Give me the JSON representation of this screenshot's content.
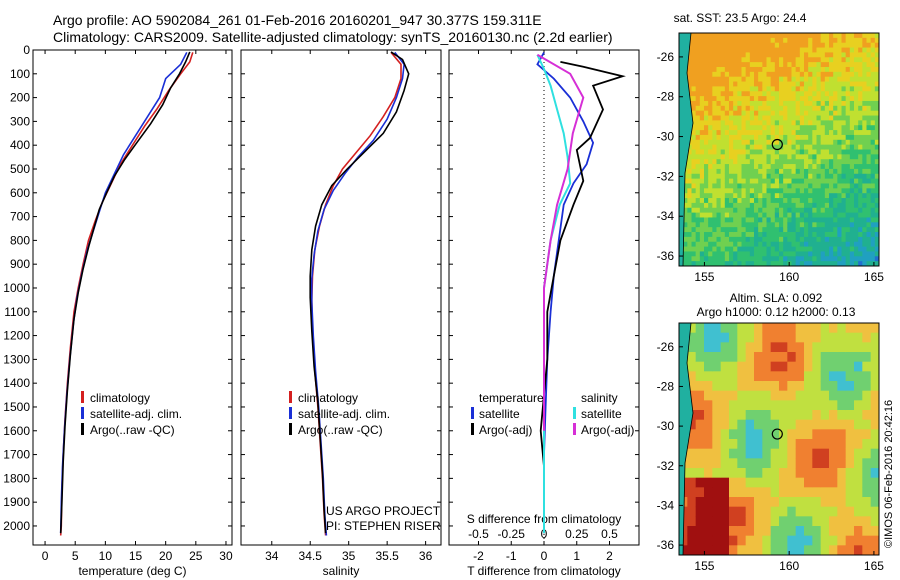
{
  "header": {
    "line1": "Argo profile: AO 5902084_261 01-Feb-2016 20160201_947 30.377S 159.311E",
    "line2": "Climatology: CARS2009. Satellite-adjusted climatology: synTS_20160130.nc (2.2d earlier)"
  },
  "colors": {
    "climatology": "#d42020",
    "satellite": "#1a2fd6",
    "argo": "#000000",
    "sal_sat": "#2fe0e0",
    "sal_argo": "#d62fd6"
  },
  "chart_data": [
    {
      "type": "line",
      "xlabel": "temperature (deg C)",
      "ylabel": "",
      "xlim": [
        -2,
        31
      ],
      "ylim": [
        2080,
        0
      ],
      "xticks": [
        0,
        5,
        10,
        15,
        20,
        25,
        30
      ],
      "yticks": [
        0,
        100,
        200,
        300,
        400,
        500,
        600,
        700,
        800,
        900,
        1000,
        1100,
        1200,
        1300,
        1400,
        1500,
        1600,
        1700,
        1800,
        1900,
        2000
      ],
      "legend": [
        "climatology",
        "satellite-adj. clim.",
        "Argo(..raw -QC)"
      ],
      "series": [
        {
          "name": "climatology",
          "color": "#d42020",
          "x": [
            24.5,
            24,
            22.5,
            20.5,
            18.5,
            16.5,
            14.5,
            12.5,
            11,
            9.5,
            8.3,
            7.2,
            6.3,
            5.5,
            4.8,
            4.2,
            3.7,
            3.3,
            3,
            2.8,
            2.7,
            2.6
          ],
          "y": [
            10,
            50,
            100,
            170,
            250,
            320,
            400,
            480,
            560,
            640,
            720,
            800,
            900,
            1000,
            1100,
            1250,
            1400,
            1550,
            1700,
            1850,
            2000,
            2040
          ]
        },
        {
          "name": "satellite-adj. clim.",
          "color": "#1a2fd6",
          "x": [
            23.5,
            22.5,
            20,
            19,
            17,
            15,
            13,
            11.5,
            10,
            9,
            8,
            7,
            6.1,
            5.3,
            4.7,
            4.1,
            3.6,
            3.2,
            2.9,
            2.7,
            2.6
          ],
          "y": [
            10,
            60,
            120,
            200,
            280,
            360,
            440,
            520,
            600,
            680,
            760,
            840,
            940,
            1040,
            1150,
            1300,
            1450,
            1600,
            1750,
            1900,
            2030
          ]
        },
        {
          "name": "Argo(..raw -QC)",
          "color": "#000000",
          "x": [
            24,
            23.3,
            22.3,
            20.8,
            19.5,
            17.5,
            15.2,
            13.2,
            11.5,
            10.2,
            9,
            8.2,
            7.3,
            6.3,
            5.5,
            4.8,
            4.2,
            3.7,
            3.3,
            3,
            2.8,
            2.6
          ],
          "y": [
            8,
            50,
            100,
            160,
            230,
            310,
            390,
            460,
            530,
            600,
            670,
            740,
            820,
            920,
            1020,
            1130,
            1280,
            1430,
            1580,
            1730,
            1900,
            2030
          ]
        }
      ]
    },
    {
      "type": "line",
      "xlabel": "salinity",
      "xlim": [
        33.6,
        36.2
      ],
      "ylim": [
        2080,
        0
      ],
      "xticks": [
        34,
        34.5,
        35,
        35.5,
        36
      ],
      "legend": [
        "climatology",
        "satellite-adj. clim.",
        "Argo(..raw -QC)"
      ],
      "series": [
        {
          "name": "climatology",
          "color": "#d42020",
          "x": [
            35.55,
            35.68,
            35.68,
            35.6,
            35.45,
            35.28,
            35.1,
            34.92,
            34.8,
            34.7,
            34.62,
            34.56,
            34.53,
            34.52,
            34.53,
            34.56,
            34.6,
            34.63,
            34.66,
            34.68,
            34.7
          ],
          "y": [
            10,
            60,
            120,
            200,
            280,
            360,
            430,
            500,
            570,
            650,
            740,
            840,
            950,
            1050,
            1200,
            1350,
            1500,
            1650,
            1800,
            1950,
            2040
          ]
        },
        {
          "name": "satellite-adj. clim.",
          "color": "#1a2fd6",
          "x": [
            35.6,
            35.72,
            35.7,
            35.62,
            35.5,
            35.32,
            35.12,
            34.95,
            34.8,
            34.68,
            34.6,
            34.55,
            34.52,
            34.52,
            34.54,
            34.57,
            34.61,
            34.64,
            34.67,
            34.69,
            34.71
          ],
          "y": [
            10,
            60,
            120,
            200,
            290,
            380,
            450,
            520,
            590,
            670,
            760,
            860,
            960,
            1060,
            1200,
            1350,
            1500,
            1650,
            1800,
            1950,
            2040
          ]
        },
        {
          "name": "Argo(..raw -QC)",
          "color": "#000000",
          "x": [
            35.55,
            35.7,
            35.78,
            35.72,
            35.62,
            35.45,
            35.2,
            34.98,
            34.78,
            34.65,
            34.57,
            34.52,
            34.5,
            34.5,
            34.52,
            34.55,
            34.6,
            34.63,
            34.66,
            34.68,
            34.7
          ],
          "y": [
            8,
            40,
            100,
            170,
            260,
            350,
            430,
            500,
            570,
            650,
            740,
            840,
            950,
            1040,
            1180,
            1330,
            1480,
            1630,
            1780,
            1930,
            2030
          ]
        }
      ]
    },
    {
      "type": "line",
      "xlabel": "T difference from climatology",
      "xlim": [
        -2.9,
        2.9
      ],
      "ylim": [
        2080,
        0
      ],
      "xticks": [
        -2,
        -1,
        0,
        1,
        2
      ],
      "second_axis": {
        "label": "S difference from climatology",
        "ticks": [
          -0.5,
          -0.25,
          0,
          0.25,
          0.5
        ],
        "tick_labels": [
          "-0.5",
          "-0.25",
          "0",
          "0.25",
          "0.5"
        ]
      },
      "legend_groups": [
        {
          "title": "temperature",
          "entries": [
            {
              "label": "satellite",
              "color": "#1a2fd6"
            },
            {
              "label": "Argo(-adj)",
              "color": "#000000"
            }
          ]
        },
        {
          "title": "salinity",
          "entries": [
            {
              "label": "satellite",
              "color": "#2fe0e0"
            },
            {
              "label": "Argo(-adj)",
              "color": "#d62fd6"
            }
          ]
        }
      ],
      "series": [
        {
          "name": "satellite",
          "group": "temperature",
          "color": "#1a2fd6",
          "x": [
            0,
            -0.2,
            0.3,
            0.8,
            1.2,
            1.5,
            1.3,
            0.9,
            0.6,
            0.5,
            0.4,
            0.3,
            0.2,
            0.1,
            0.05,
            0,
            0,
            0,
            0
          ],
          "y": [
            10,
            60,
            120,
            200,
            300,
            390,
            480,
            560,
            650,
            750,
            850,
            950,
            1100,
            1300,
            1500,
            1700,
            1850,
            1950,
            2030
          ]
        },
        {
          "name": "Argo(-adj)",
          "group": "temperature",
          "color": "#000000",
          "x": [
            0.5,
            1.2,
            2.4,
            1.5,
            1.8,
            1.4,
            1.0,
            1.2,
            0.9,
            0.5,
            0.3,
            0.1,
            0.1,
            0,
            -0.1,
            0,
            0,
            0
          ],
          "y": [
            50,
            70,
            110,
            150,
            250,
            370,
            420,
            550,
            650,
            800,
            950,
            1100,
            1300,
            1450,
            1600,
            1750,
            1900,
            2030
          ]
        },
        {
          "name": "satellite",
          "group": "salinity",
          "color": "#2fe0e0",
          "x": [
            -0.05,
            0,
            0.05,
            0.1,
            0.15,
            0.18,
            0.2,
            0.12,
            0.05,
            0,
            0,
            0,
            0,
            0
          ],
          "y": [
            20,
            80,
            150,
            250,
            350,
            450,
            560,
            650,
            800,
            1000,
            1300,
            1600,
            1850,
            2030
          ]
        },
        {
          "name": "Argo(-adj)",
          "group": "salinity",
          "color": "#d62fd6",
          "x": [
            -0.05,
            0.2,
            0.3,
            0.22,
            0.18,
            0.1,
            0.05,
            0,
            0,
            0
          ],
          "y": [
            20,
            100,
            200,
            350,
            500,
            650,
            800,
            1000,
            1300,
            1600
          ]
        }
      ]
    },
    {
      "type": "heatmap",
      "title": "sat. SST: 23.5 Argo: 24.4",
      "xticks": [
        155,
        160,
        165
      ],
      "yticks": [
        -26,
        -28,
        -30,
        -32,
        -34,
        -36
      ],
      "xlim": [
        153.5,
        165.3
      ],
      "ylim": [
        -36.5,
        -24.8
      ]
    },
    {
      "type": "heatmap",
      "title_line1": "Altim. SLA: 0.092",
      "title_line2": "Argo h1000: 0.12 h2000: 0.13",
      "xticks": [
        155,
        160,
        165
      ],
      "yticks": [
        -26,
        -28,
        -30,
        -32,
        -34,
        -36
      ],
      "xlim": [
        153.5,
        165.3
      ],
      "ylim": [
        -36.5,
        -24.8
      ]
    }
  ],
  "annotations": {
    "project_line1": "US ARGO PROJECT",
    "project_line2": "PI: STEPHEN RISER",
    "watermark": "©IMOS 06-Feb-2016 20:42:16"
  }
}
